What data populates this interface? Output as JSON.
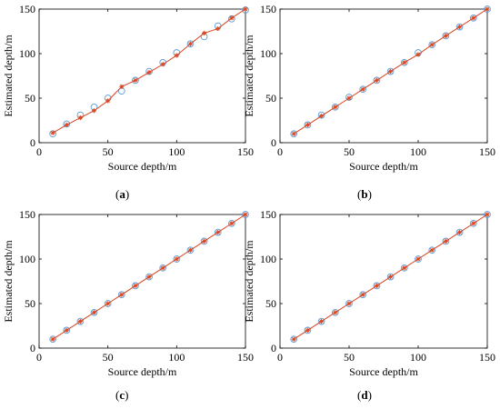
{
  "chart_data": [
    {
      "type": "scatter",
      "label": "a",
      "xlabel": "Source depth/m",
      "ylabel": "Estimated depth/m",
      "xlim": [
        0,
        150
      ],
      "ylim": [
        0,
        150
      ],
      "xticks": [
        "0",
        "50",
        "100",
        "150"
      ],
      "yticks": [
        "0",
        "50",
        "100",
        "150"
      ],
      "series": [
        {
          "marker": "circle",
          "color": "#5b9bd5",
          "x": [
            10,
            20,
            30,
            40,
            50,
            60,
            70,
            80,
            90,
            100,
            110,
            120,
            130,
            140,
            150
          ],
          "y": [
            10,
            21,
            31,
            40,
            50,
            58,
            70,
            80,
            90,
            101,
            111,
            119,
            131,
            139,
            149
          ]
        },
        {
          "marker": "star-line",
          "color": "#d9431e",
          "x": [
            10,
            20,
            30,
            40,
            50,
            60,
            70,
            80,
            90,
            100,
            110,
            120,
            130,
            140,
            150
          ],
          "y": [
            11,
            20,
            28,
            36,
            47,
            63,
            70,
            79,
            88,
            98,
            111,
            123,
            128,
            140,
            150
          ]
        }
      ]
    },
    {
      "type": "scatter",
      "label": "b",
      "xlabel": "Source depth/m",
      "ylabel": "Estimated depth/m",
      "xlim": [
        0,
        150
      ],
      "ylim": [
        0,
        150
      ],
      "xticks": [
        "0",
        "50",
        "100",
        "150"
      ],
      "yticks": [
        "0",
        "50",
        "100",
        "150"
      ],
      "series": [
        {
          "marker": "circle",
          "color": "#5b9bd5",
          "x": [
            10,
            20,
            30,
            40,
            50,
            60,
            70,
            80,
            90,
            100,
            110,
            120,
            130,
            140,
            150
          ],
          "y": [
            10,
            20,
            31,
            40,
            51,
            60,
            70,
            80,
            90,
            101,
            110,
            120,
            130,
            140,
            150
          ]
        },
        {
          "marker": "star-line",
          "color": "#d9431e",
          "x": [
            10,
            20,
            30,
            40,
            50,
            60,
            70,
            80,
            90,
            100,
            110,
            120,
            130,
            140,
            150
          ],
          "y": [
            10,
            20,
            30,
            40,
            50,
            60,
            70,
            80,
            90,
            99,
            110,
            120,
            130,
            140,
            150
          ]
        }
      ]
    },
    {
      "type": "scatter",
      "label": "c",
      "xlabel": "Source depth/m",
      "ylabel": "Estimated depth/m",
      "xlim": [
        0,
        150
      ],
      "ylim": [
        0,
        150
      ],
      "xticks": [
        "0",
        "50",
        "100",
        "150"
      ],
      "yticks": [
        "0",
        "50",
        "100",
        "150"
      ],
      "series": [
        {
          "marker": "circle",
          "color": "#5b9bd5",
          "x": [
            10,
            20,
            30,
            40,
            50,
            60,
            70,
            80,
            90,
            100,
            110,
            120,
            130,
            140,
            150
          ],
          "y": [
            10,
            20,
            30,
            40,
            50,
            60,
            70,
            80,
            90,
            100,
            110,
            120,
            130,
            140,
            150
          ]
        },
        {
          "marker": "star-line",
          "color": "#d9431e",
          "x": [
            10,
            20,
            30,
            40,
            50,
            60,
            70,
            80,
            90,
            100,
            110,
            120,
            130,
            140,
            150
          ],
          "y": [
            10,
            20,
            30,
            40,
            50,
            60,
            70,
            80,
            90,
            100,
            110,
            120,
            130,
            140,
            150
          ]
        }
      ]
    },
    {
      "type": "scatter",
      "label": "d",
      "xlabel": "Source depth/m",
      "ylabel": "Estimated depth/m",
      "xlim": [
        0,
        150
      ],
      "ylim": [
        0,
        150
      ],
      "xticks": [
        "0",
        "50",
        "100",
        "150"
      ],
      "yticks": [
        "0",
        "50",
        "100",
        "150"
      ],
      "series": [
        {
          "marker": "circle",
          "color": "#5b9bd5",
          "x": [
            10,
            20,
            30,
            40,
            50,
            60,
            70,
            80,
            90,
            100,
            110,
            120,
            130,
            140,
            150
          ],
          "y": [
            10,
            20,
            30,
            40,
            50,
            60,
            70,
            80,
            90,
            100,
            110,
            120,
            130,
            140,
            150
          ]
        },
        {
          "marker": "star-line",
          "color": "#d9431e",
          "x": [
            10,
            20,
            30,
            40,
            50,
            60,
            70,
            80,
            90,
            100,
            110,
            120,
            130,
            140,
            150
          ],
          "y": [
            10,
            20,
            30,
            40,
            50,
            60,
            70,
            80,
            90,
            100,
            110,
            120,
            130,
            140,
            150
          ]
        }
      ]
    }
  ],
  "captions": [
    "(a)",
    "(b)",
    "(c)",
    "(d)"
  ]
}
